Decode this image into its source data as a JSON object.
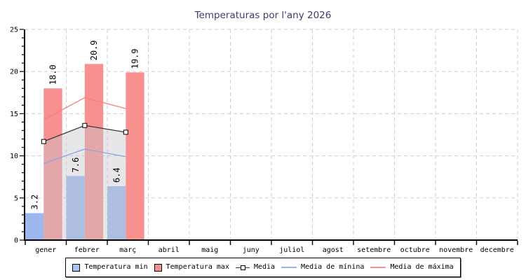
{
  "title": "Temperaturas por l'any 2026",
  "chart_data": {
    "type": "bar",
    "title": "Temperaturas por l'any 2026",
    "categories": [
      "gener",
      "febrer",
      "març",
      "abril",
      "maig",
      "juny",
      "juliol",
      "agost",
      "setembre",
      "octubre",
      "novembre",
      "decembre"
    ],
    "ylim": [
      0,
      25
    ],
    "ytick_major_step": 5,
    "ytick_minor_step": 1,
    "grid": "dashed",
    "grid_color": "#cfcfcf",
    "axis_color": "#000000",
    "legend_position": "bottom",
    "series": [
      {
        "name": "Temperatura min",
        "kind": "bar",
        "color": "#9cb8ee",
        "values": [
          3.2,
          7.6,
          6.4
        ]
      },
      {
        "name": "Temperatura max",
        "kind": "bar",
        "color": "#f89090",
        "values": [
          18.0,
          20.9,
          19.9
        ]
      },
      {
        "name": "Media",
        "kind": "line",
        "color": "#3a3a3a",
        "marker": "square",
        "marker_fill": "#ffffff",
        "area_fill": "rgba(198,198,206,0.42)",
        "values": [
          11.7,
          13.6,
          12.8
        ]
      },
      {
        "name": "Media de mínina",
        "kind": "line",
        "color": "#8ba6de",
        "values": [
          9.1,
          10.8,
          9.9
        ]
      },
      {
        "name": "Media de máxima",
        "kind": "line",
        "color": "#f37f7f",
        "values": [
          14.3,
          16.9,
          15.6
        ]
      }
    ]
  },
  "legend": {
    "items": [
      {
        "label": "Temperatura min",
        "swatch": "square",
        "color": "#a8c4f4"
      },
      {
        "label": "Temperatura max",
        "swatch": "square",
        "color": "#f79090"
      },
      {
        "label": "Media",
        "swatch": "line-marker",
        "color": "#3a3a3a"
      },
      {
        "label": "Media de mínina",
        "swatch": "line",
        "color": "#99b4e4"
      },
      {
        "label": "Media de máxima",
        "swatch": "line",
        "color": "#f79090"
      }
    ]
  }
}
